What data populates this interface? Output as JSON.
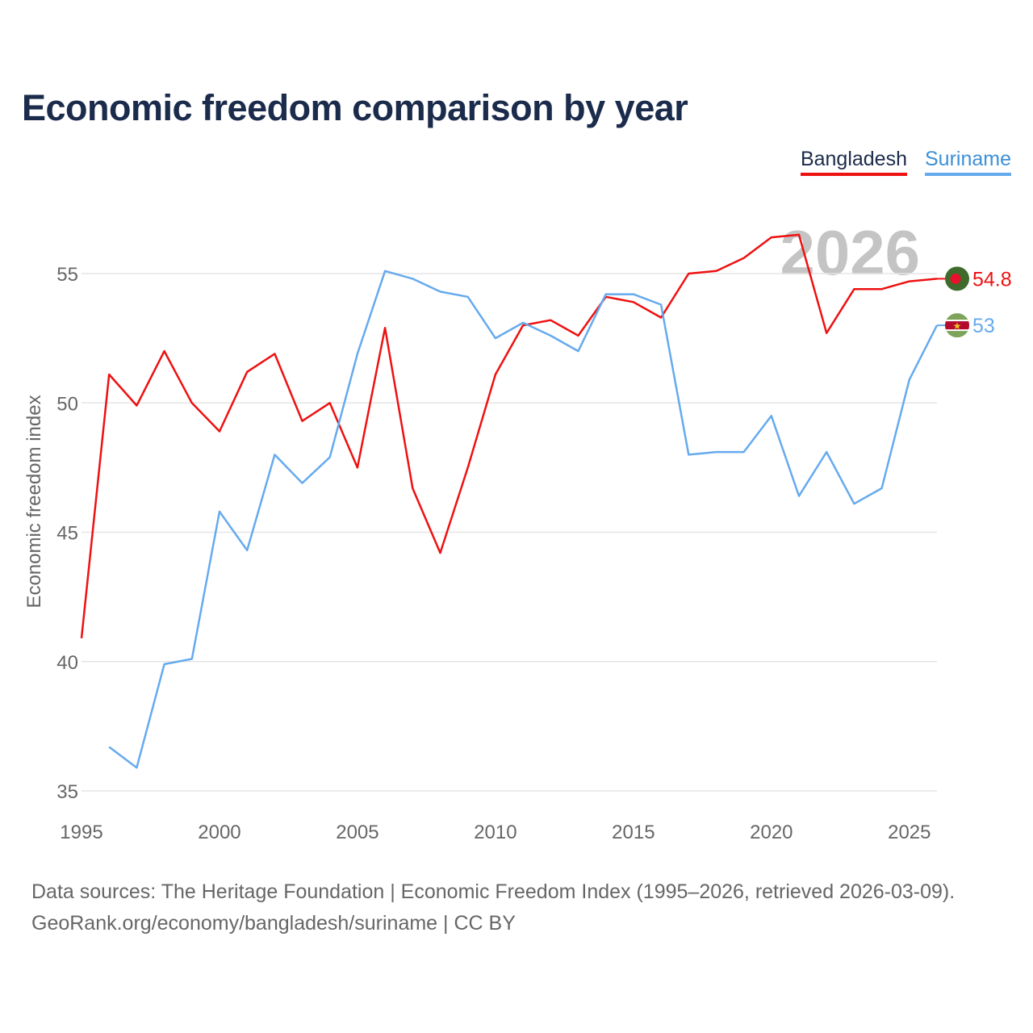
{
  "chart_data": {
    "type": "line",
    "title": "Economic freedom comparison by year",
    "xlabel": "",
    "ylabel": "Economic freedom index",
    "xlim": [
      1995,
      2026
    ],
    "ylim": [
      35,
      58
    ],
    "yticks": [
      35,
      40,
      45,
      50,
      55
    ],
    "xticks": [
      1995,
      2000,
      2005,
      2010,
      2015,
      2020,
      2025
    ],
    "year_label": "2026",
    "series": [
      {
        "name": "Bangladesh",
        "color": "#ee1111",
        "end_label": "54.8",
        "x": [
          1995,
          1996,
          1997,
          1998,
          1999,
          2000,
          2001,
          2002,
          2003,
          2004,
          2005,
          2006,
          2007,
          2008,
          2009,
          2010,
          2011,
          2012,
          2013,
          2014,
          2015,
          2016,
          2017,
          2018,
          2019,
          2020,
          2021,
          2022,
          2023,
          2024,
          2025,
          2026
        ],
        "values": [
          40.9,
          51.1,
          49.9,
          52.0,
          50.0,
          48.9,
          51.2,
          51.9,
          49.3,
          50.0,
          47.5,
          52.9,
          46.7,
          44.2,
          47.5,
          51.1,
          53.0,
          53.2,
          52.6,
          54.1,
          53.9,
          53.3,
          55.0,
          55.1,
          55.6,
          56.4,
          56.5,
          52.7,
          54.4,
          54.4,
          54.7,
          54.8
        ]
      },
      {
        "name": "Suriname",
        "color": "#66aaee",
        "end_label": "53",
        "x": [
          1996,
          1997,
          1998,
          1999,
          2000,
          2001,
          2002,
          2003,
          2004,
          2005,
          2006,
          2007,
          2008,
          2009,
          2010,
          2011,
          2012,
          2013,
          2014,
          2015,
          2016,
          2017,
          2018,
          2019,
          2020,
          2021,
          2022,
          2023,
          2024,
          2025,
          2026
        ],
        "values": [
          36.7,
          35.9,
          39.9,
          40.1,
          45.8,
          44.3,
          48.0,
          46.9,
          47.9,
          51.9,
          55.1,
          54.8,
          54.3,
          54.1,
          52.5,
          53.1,
          52.6,
          52.0,
          54.2,
          54.2,
          53.8,
          48.0,
          48.1,
          48.1,
          49.5,
          46.4,
          48.1,
          46.1,
          46.7,
          50.9,
          53.0
        ]
      }
    ]
  },
  "legend": [
    "Bangladesh",
    "Suriname"
  ],
  "source": {
    "line1": "Data sources: The Heritage Foundation | Economic Freedom Index (1995–2026, retrieved 2026-03-09).",
    "line2": "GeoRank.org/economy/bangladesh/suriname | CC BY"
  }
}
